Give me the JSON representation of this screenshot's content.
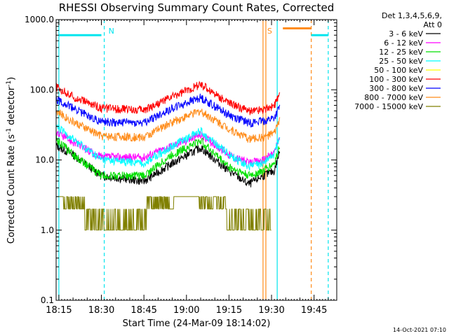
{
  "chart_data": {
    "type": "line",
    "title": "RHESSI Observing Summary Count Rates, Corrected",
    "xlabel": "Start Time (24-Mar-09 18:14:02)",
    "ylabel_main": "Corrected Count Rate (s",
    "ylabel_sup1": "-1",
    "ylabel_mid": " detector",
    "ylabel_sup2": "-1",
    "ylabel_end": ")",
    "footer_date": "14-Oct-2021 07:10",
    "legend_header": [
      "Det 1,3,4,5,6,9,",
      "Att 0"
    ],
    "y_scale": "log",
    "ylim": [
      0.1,
      1000
    ],
    "xlim": [
      "18:14:02",
      "19:53:00"
    ],
    "x_ticks": [
      "18:15",
      "18:30",
      "18:45",
      "19:00",
      "19:15",
      "19:30",
      "19:45"
    ],
    "y_ticks": [
      "0.1",
      "1.0",
      "10.0",
      "100.0",
      "1000.0"
    ],
    "gaps": [
      [
        "19:34",
        "19:50"
      ]
    ],
    "annotations": [
      {
        "text": "N",
        "time": "18:31",
        "color": "#00e5ee"
      },
      {
        "text": "S",
        "time": "19:27",
        "color": "#ff8c1a"
      }
    ],
    "flag_bars": [
      {
        "from": "18:15",
        "to": "18:30",
        "y": 600,
        "color": "#00e5ee"
      },
      {
        "from": "19:34",
        "to": "19:44",
        "y": 750,
        "color": "#ff8c1a"
      },
      {
        "from": "19:44",
        "to": "19:50",
        "y": 600,
        "color": "#00e5ee"
      }
    ],
    "vertical_lines": [
      {
        "time": "18:15",
        "color": "#00e5ee",
        "style": "solid"
      },
      {
        "time": "18:31",
        "color": "#00e5ee",
        "style": "dashed"
      },
      {
        "time": "19:27",
        "color": "#ff8c1a",
        "style": "solid"
      },
      {
        "time": "19:28",
        "color": "#ff8c1a",
        "style": "solid"
      },
      {
        "time": "19:32",
        "color": "#00e5ee",
        "style": "solid"
      },
      {
        "time": "19:44",
        "color": "#ff8c1a",
        "style": "dashed"
      },
      {
        "time": "19:50",
        "color": "#00e5ee",
        "style": "dashed"
      }
    ],
    "series": [
      {
        "name": "3 - 6 keV",
        "color": "#000000",
        "points": [
          [
            "18:14",
            "16"
          ],
          [
            "18:20",
            "12"
          ],
          [
            "18:30",
            "6"
          ],
          [
            "18:45",
            "5"
          ],
          [
            "18:55",
            "9"
          ],
          [
            "19:05",
            "15"
          ],
          [
            "19:15",
            "7"
          ],
          [
            "19:22",
            "4.5"
          ],
          [
            "19:27",
            "6"
          ],
          [
            "19:31",
            "7"
          ],
          [
            "19:33",
            "14"
          ]
        ]
      },
      {
        "name": "6 - 12 keV",
        "color": "#ff00ff",
        "points": [
          [
            "18:14",
            "25"
          ],
          [
            "18:20",
            "18"
          ],
          [
            "18:30",
            "11"
          ],
          [
            "18:45",
            "11"
          ],
          [
            "18:55",
            "16"
          ],
          [
            "19:05",
            "23"
          ],
          [
            "19:15",
            "12"
          ],
          [
            "19:22",
            "9"
          ],
          [
            "19:27",
            "10"
          ],
          [
            "19:31",
            "13"
          ],
          [
            "19:33",
            "22"
          ]
        ]
      },
      {
        "name": "12 - 25 keV",
        "color": "#00e000",
        "points": [
          [
            "18:14",
            "20"
          ],
          [
            "18:20",
            "12"
          ],
          [
            "18:30",
            "6"
          ],
          [
            "18:45",
            "6"
          ],
          [
            "18:55",
            "12"
          ],
          [
            "19:05",
            "19"
          ],
          [
            "19:15",
            "8"
          ],
          [
            "19:22",
            "6"
          ],
          [
            "19:27",
            "7"
          ],
          [
            "19:31",
            "9"
          ],
          [
            "19:33",
            "17"
          ]
        ]
      },
      {
        "name": "25 - 50 keV",
        "color": "#00ffff",
        "points": [
          [
            "18:14",
            "30"
          ],
          [
            "18:20",
            "20"
          ],
          [
            "18:30",
            "10"
          ],
          [
            "18:45",
            "9"
          ],
          [
            "18:55",
            "16"
          ],
          [
            "19:05",
            "26"
          ],
          [
            "19:15",
            "12"
          ],
          [
            "19:22",
            "8"
          ],
          [
            "19:27",
            "9"
          ],
          [
            "19:31",
            "12"
          ],
          [
            "19:33",
            "25"
          ]
        ]
      },
      {
        "name": "50 - 100 keV",
        "color": "#ffff00",
        "points": []
      },
      {
        "name": "100 - 300 keV",
        "color": "#ff0000",
        "points": [
          [
            "18:14",
            "110"
          ],
          [
            "18:20",
            "80"
          ],
          [
            "18:30",
            "55"
          ],
          [
            "18:45",
            "52"
          ],
          [
            "18:55",
            "80"
          ],
          [
            "19:05",
            "120"
          ],
          [
            "19:15",
            "65"
          ],
          [
            "19:22",
            "50"
          ],
          [
            "19:27",
            "53"
          ],
          [
            "19:31",
            "60"
          ],
          [
            "19:33",
            "85"
          ]
        ]
      },
      {
        "name": "300 - 800 keV",
        "color": "#0000ff",
        "points": [
          [
            "18:14",
            "75"
          ],
          [
            "18:20",
            "55"
          ],
          [
            "18:30",
            "35"
          ],
          [
            "18:45",
            "34"
          ],
          [
            "18:55",
            "55"
          ],
          [
            "19:05",
            "78"
          ],
          [
            "19:15",
            "44"
          ],
          [
            "19:22",
            "34"
          ],
          [
            "19:27",
            "36"
          ],
          [
            "19:31",
            "40"
          ],
          [
            "19:33",
            "58"
          ]
        ]
      },
      {
        "name": "800 - 7000 keV",
        "color": "#ff8c1a",
        "points": [
          [
            "18:14",
            "50"
          ],
          [
            "18:20",
            "35"
          ],
          [
            "18:30",
            "22"
          ],
          [
            "18:45",
            "21"
          ],
          [
            "18:55",
            "35"
          ],
          [
            "19:05",
            "50"
          ],
          [
            "19:15",
            "28"
          ],
          [
            "19:22",
            "20"
          ],
          [
            "19:27",
            "21"
          ],
          [
            "19:31",
            "24"
          ],
          [
            "19:33",
            "40"
          ]
        ]
      },
      {
        "name": "7000 - 15000 keV",
        "color": "#808000",
        "points": [
          [
            "18:14",
            "3"
          ],
          [
            "18:20",
            "2"
          ],
          [
            "18:30",
            "1"
          ],
          [
            "18:40",
            "1"
          ],
          [
            "18:50",
            "2"
          ],
          [
            "19:00",
            "3"
          ],
          [
            "19:10",
            "2"
          ],
          [
            "19:20",
            "1"
          ],
          [
            "19:30",
            "1"
          ]
        ]
      }
    ]
  }
}
